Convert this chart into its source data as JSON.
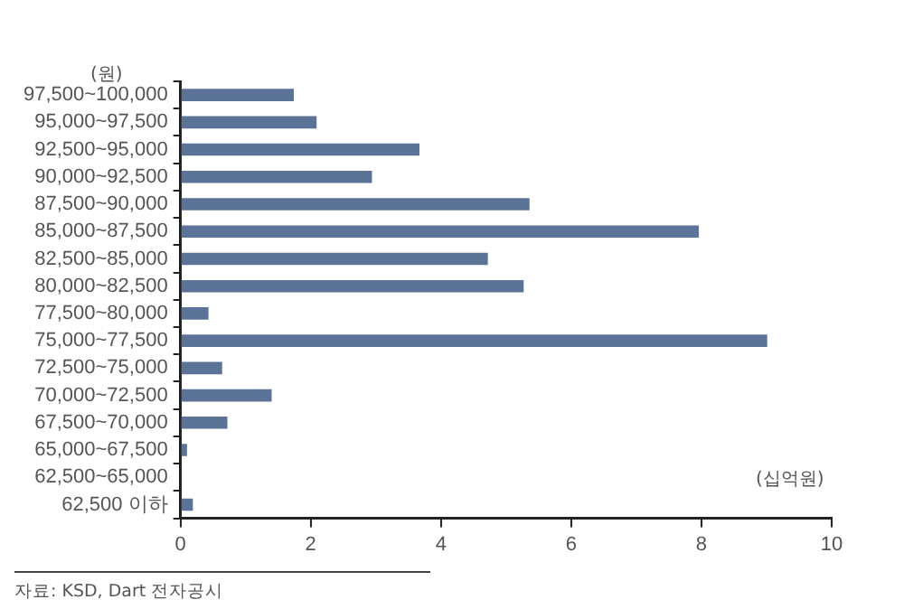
{
  "chart_data": {
    "type": "bar",
    "orientation": "horizontal",
    "ylabel": "(원)",
    "xlabel": "(십억원)",
    "categories": [
      "97,500~100,000",
      "95,000~97,500",
      "92,500~95,000",
      "90,000~92,500",
      "87,500~90,000",
      "85,000~87,500",
      "82,500~85,000",
      "80,000~82,500",
      "77,500~80,000",
      "75,000~77,500",
      "72,500~75,000",
      "70,000~72,500",
      "67,500~70,000",
      "65,000~67,500",
      "62,500~65,000",
      "62,500 이하"
    ],
    "values": [
      1.74,
      2.09,
      3.67,
      2.94,
      5.36,
      7.96,
      4.72,
      5.27,
      0.43,
      9.01,
      0.64,
      1.4,
      0.72,
      0.1,
      0,
      0.19
    ],
    "color": "#5b7396",
    "xlim": [
      0,
      10
    ],
    "xticks": [
      0,
      2,
      4,
      6,
      8,
      10
    ],
    "grid": false,
    "legend": false,
    "annotations": [
      "자료: KSD, Dart 전자공시"
    ]
  }
}
